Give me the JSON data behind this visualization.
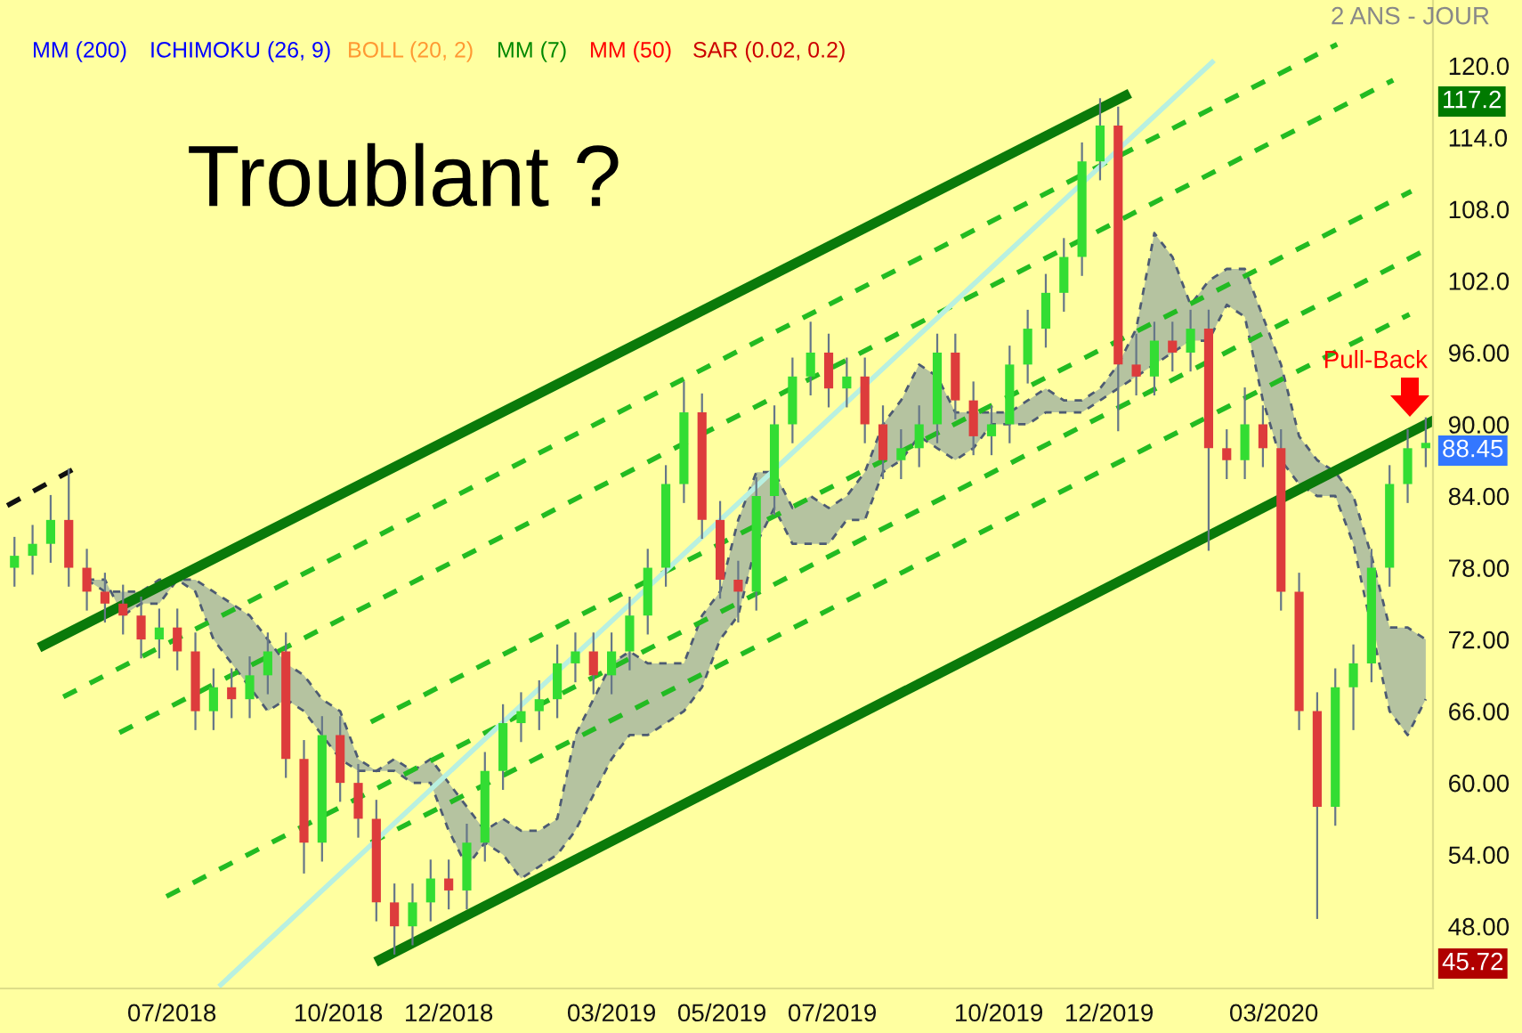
{
  "chart_data": {
    "type": "candlestick",
    "x": [
      "2018-04-05",
      "2018-04-15",
      "2018-04-25",
      "2018-05-05",
      "2018-05-15",
      "2018-05-25",
      "2018-06-04",
      "2018-06-14",
      "2018-06-24",
      "2018-07-04",
      "2018-07-14",
      "2018-07-24",
      "2018-08-03",
      "2018-08-13",
      "2018-08-23",
      "2018-09-02",
      "2018-09-12",
      "2018-09-22",
      "2018-10-02",
      "2018-10-12",
      "2018-10-22",
      "2018-11-01",
      "2018-11-11",
      "2018-11-21",
      "2018-12-01",
      "2018-12-11",
      "2018-12-21",
      "2018-12-31",
      "2019-01-10",
      "2019-01-20",
      "2019-01-30",
      "2019-02-09",
      "2019-02-19",
      "2019-03-01",
      "2019-03-11",
      "2019-03-21",
      "2019-03-31",
      "2019-04-10",
      "2019-04-20",
      "2019-04-30",
      "2019-05-10",
      "2019-05-20",
      "2019-05-30",
      "2019-06-09",
      "2019-06-19",
      "2019-06-29",
      "2019-07-09",
      "2019-07-19",
      "2019-07-29",
      "2019-08-08",
      "2019-08-18",
      "2019-08-28",
      "2019-09-07",
      "2019-09-17",
      "2019-09-27",
      "2019-10-07",
      "2019-10-17",
      "2019-10-27",
      "2019-11-06",
      "2019-11-16",
      "2019-11-26",
      "2019-12-06",
      "2019-12-16",
      "2019-12-26",
      "2020-01-05",
      "2020-01-15",
      "2020-01-25",
      "2020-02-04",
      "2020-02-14",
      "2020-02-24",
      "2020-03-05",
      "2020-03-15",
      "2020-03-25",
      "2020-04-04",
      "2020-04-14",
      "2020-04-24",
      "2020-05-04",
      "2020-05-14",
      "2020-05-24"
    ],
    "ohlc": [
      [
        78,
        80.5,
        76.5,
        79
      ],
      [
        79,
        81.5,
        77.5,
        80
      ],
      [
        80,
        84,
        78.5,
        82
      ],
      [
        82,
        86.2,
        76.5,
        78
      ],
      [
        78,
        79.5,
        74.5,
        76
      ],
      [
        76,
        77.5,
        73.5,
        75
      ],
      [
        75,
        76.5,
        72.5,
        74
      ],
      [
        74,
        75.5,
        70.5,
        72
      ],
      [
        72,
        74.5,
        70.5,
        73
      ],
      [
        73,
        74.5,
        69.5,
        71
      ],
      [
        71,
        72.5,
        64.5,
        66
      ],
      [
        66,
        69.5,
        64.5,
        68
      ],
      [
        68,
        69.5,
        65.5,
        67
      ],
      [
        67,
        70.5,
        65.5,
        69
      ],
      [
        69,
        72.5,
        67.5,
        71
      ],
      [
        71,
        72.5,
        60.5,
        62
      ],
      [
        62,
        63.5,
        52.5,
        55
      ],
      [
        55,
        65.5,
        53.5,
        64
      ],
      [
        64,
        65.5,
        58.5,
        60
      ],
      [
        60,
        61.5,
        55.5,
        57
      ],
      [
        57,
        58.5,
        48.5,
        50
      ],
      [
        50,
        51.5,
        45.72,
        48
      ],
      [
        48,
        51.5,
        46.5,
        50
      ],
      [
        50,
        53.5,
        48.5,
        52
      ],
      [
        52,
        53.5,
        49.5,
        51
      ],
      [
        51,
        56.5,
        49.5,
        55
      ],
      [
        55,
        62.5,
        53.5,
        61
      ],
      [
        61,
        66.5,
        59.5,
        65
      ],
      [
        65,
        67.5,
        63.5,
        66
      ],
      [
        66,
        68.5,
        64.5,
        67
      ],
      [
        67,
        71.5,
        65.5,
        70
      ],
      [
        70,
        72.5,
        68.5,
        71
      ],
      [
        71,
        72.5,
        67.5,
        69
      ],
      [
        69,
        72.5,
        67.5,
        71
      ],
      [
        71,
        75.5,
        69.5,
        74
      ],
      [
        74,
        79.5,
        72.5,
        78
      ],
      [
        78,
        86.5,
        76.5,
        85
      ],
      [
        85,
        93.5,
        83.5,
        91
      ],
      [
        91,
        92.5,
        80.5,
        82
      ],
      [
        82,
        83.5,
        75.5,
        77
      ],
      [
        77,
        78.5,
        73.5,
        76
      ],
      [
        76,
        85.5,
        74.5,
        84
      ],
      [
        84,
        91.5,
        82.5,
        90
      ],
      [
        90,
        95.5,
        88.5,
        94
      ],
      [
        94,
        98.5,
        92.5,
        96
      ],
      [
        96,
        97.5,
        91.5,
        93
      ],
      [
        93,
        95.5,
        91.5,
        94
      ],
      [
        94,
        95.5,
        88.5,
        90
      ],
      [
        90,
        91.5,
        85.5,
        87
      ],
      [
        87,
        89.5,
        85.5,
        88
      ],
      [
        88,
        91.5,
        86.5,
        90
      ],
      [
        90,
        97.5,
        88.5,
        96
      ],
      [
        96,
        97.5,
        90.5,
        92
      ],
      [
        92,
        93.5,
        87.5,
        89
      ],
      [
        89,
        91.5,
        87.5,
        90
      ],
      [
        90,
        96.5,
        88.5,
        95
      ],
      [
        95,
        99.5,
        93.5,
        98
      ],
      [
        98,
        102.5,
        96.5,
        101
      ],
      [
        101,
        105.5,
        99.5,
        104
      ],
      [
        104,
        113.5,
        102.5,
        112
      ],
      [
        112,
        117.2,
        110.5,
        115
      ],
      [
        115,
        116.5,
        89.5,
        95
      ],
      [
        95,
        97.5,
        92.5,
        94
      ],
      [
        94,
        98.5,
        92.5,
        97
      ],
      [
        97,
        98.5,
        94.5,
        96
      ],
      [
        96,
        99.5,
        94.5,
        98
      ],
      [
        98,
        99.5,
        79.5,
        88
      ],
      [
        88,
        89.5,
        85.5,
        87
      ],
      [
        87,
        93,
        85.5,
        90
      ],
      [
        90,
        91.5,
        86.5,
        88
      ],
      [
        88,
        89.5,
        74.5,
        76
      ],
      [
        76,
        77.5,
        64.5,
        66
      ],
      [
        66,
        67.5,
        48.7,
        58
      ],
      [
        58,
        69.5,
        56.5,
        68
      ],
      [
        68,
        71.5,
        64.5,
        70
      ],
      [
        70,
        79.5,
        68.5,
        78
      ],
      [
        78,
        86.5,
        76.5,
        85
      ],
      [
        85,
        89.5,
        83.5,
        88
      ],
      [
        88,
        90.5,
        86.5,
        88.45
      ]
    ],
    "colors": [
      "#33dd33",
      "#33dd33",
      "#33dd33",
      "#dd3c3c",
      "#dd3c3c",
      "#dd3c3c",
      "#dd3c3c",
      "#dd3c3c",
      "#33dd33",
      "#dd3c3c",
      "#dd3c3c",
      "#33dd33",
      "#dd3c3c",
      "#33dd33",
      "#33dd33",
      "#dd3c3c",
      "#dd3c3c",
      "#33dd33",
      "#dd3c3c",
      "#dd3c3c",
      "#dd3c3c",
      "#dd3c3c",
      "#33dd33",
      "#33dd33",
      "#dd3c3c",
      "#33dd33",
      "#33dd33",
      "#33dd33",
      "#33dd33",
      "#33dd33",
      "#33dd33",
      "#33dd33",
      "#dd3c3c",
      "#33dd33",
      "#33dd33",
      "#33dd33",
      "#33dd33",
      "#33dd33",
      "#dd3c3c",
      "#dd3c3c",
      "#dd3c3c",
      "#33dd33",
      "#33dd33",
      "#33dd33",
      "#33dd33",
      "#dd3c3c",
      "#33dd33",
      "#dd3c3c",
      "#dd3c3c",
      "#33dd33",
      "#33dd33",
      "#33dd33",
      "#dd3c3c",
      "#dd3c3c",
      "#33dd33",
      "#33dd33",
      "#33dd33",
      "#33dd33",
      "#33dd33",
      "#33dd33",
      "#33dd33",
      "#dd3c3c",
      "#dd3c3c",
      "#33dd33",
      "#dd3c3c",
      "#33dd33",
      "#dd3c3c",
      "#dd3c3c",
      "#33dd33",
      "#dd3c3c",
      "#dd3c3c",
      "#dd3c3c",
      "#dd3c3c",
      "#33dd33",
      "#33dd33",
      "#33dd33",
      "#33dd33",
      "#33dd33",
      "#33dd33"
    ],
    "series": [
      {
        "type": "line",
        "color": "#4d5b73",
        "line_style": "dashed",
        "values": [
          null,
          null,
          null,
          null,
          77,
          76,
          76,
          76,
          77,
          77,
          77,
          76,
          75,
          74,
          72,
          70,
          69,
          67,
          66,
          62,
          61,
          62,
          61,
          62,
          60,
          58,
          56,
          57,
          56,
          56,
          57,
          64,
          67,
          70,
          71,
          70,
          70,
          70,
          74,
          76,
          82,
          86,
          86,
          83,
          84,
          83,
          84,
          86,
          90,
          92,
          95,
          94,
          91,
          91,
          91,
          91,
          92,
          93,
          92,
          92,
          93,
          95,
          98,
          106,
          104,
          100,
          102,
          103,
          103,
          99,
          95,
          89,
          87,
          86,
          84,
          79,
          73,
          73,
          72
        ],
        "lower": [
          null,
          null,
          null,
          null,
          77,
          77,
          74,
          75,
          75,
          77,
          76,
          72,
          70,
          68,
          66,
          67,
          66,
          64,
          62,
          61,
          61,
          61,
          60,
          60,
          56,
          53,
          55,
          54,
          52,
          53,
          54,
          56,
          59,
          62,
          64,
          64,
          65,
          66,
          68,
          72,
          74,
          80,
          83,
          80,
          80,
          80,
          82,
          82,
          86,
          87,
          89,
          88,
          87,
          88,
          90,
          90,
          90,
          91,
          91,
          91,
          92,
          93,
          94,
          95,
          96,
          97,
          97,
          100,
          99,
          92,
          87,
          85,
          84,
          84,
          80,
          74,
          66,
          64,
          67
        ],
        "upper": [
          null,
          null,
          null,
          null,
          77,
          76,
          76,
          76,
          77,
          77,
          77,
          76,
          75,
          74,
          72,
          70,
          69,
          67,
          66,
          62,
          61,
          62,
          61,
          62,
          60,
          58,
          56,
          57,
          56,
          56,
          57,
          64,
          67,
          70,
          71,
          70,
          70,
          70,
          74,
          76,
          82,
          86,
          86,
          83,
          84,
          83,
          84,
          86,
          90,
          92,
          95,
          94,
          91,
          91,
          91,
          91,
          92,
          93,
          92,
          92,
          93,
          95,
          98,
          106,
          104,
          100,
          102,
          103,
          103,
          99,
          95,
          89,
          87,
          86,
          84,
          79,
          73,
          73,
          72
        ]
      },
      {
        "type": "line",
        "color": "#4d5b73",
        "line_style": "dashed",
        "values": [
          null,
          null,
          null,
          null,
          77,
          77,
          74,
          75,
          75,
          77,
          76,
          72,
          70,
          68,
          66,
          67,
          66,
          64,
          62,
          61,
          61,
          61,
          60,
          60,
          56,
          53,
          55,
          54,
          52,
          53,
          54,
          56,
          59,
          62,
          64,
          64,
          65,
          66,
          68,
          72,
          74,
          80,
          83,
          80,
          80,
          80,
          82,
          82,
          86,
          87,
          89,
          88,
          87,
          88,
          90,
          90,
          90,
          91,
          91,
          91,
          92,
          93,
          94,
          95,
          96,
          97,
          97,
          100,
          99,
          92,
          87,
          85,
          84,
          84,
          80,
          null,
          66,
          64,
          67
        ]
      },
      {
        "type": "line",
        "color": "#0a7a0a",
        "x": [
          "2018-04-21",
          "2019-12-10"
        ],
        "values": [
          71.5,
          117.5
        ]
      },
      {
        "type": "line",
        "color": "#0a7a0a",
        "x": [
          "2018-10-24",
          "2020-05-28"
        ],
        "values": [
          45.2,
          90.3
        ]
      },
      {
        "type": "line",
        "color": "#22bb22",
        "line_style": "dashed",
        "x": [
          "2018-05-02",
          "2020-04-05"
        ],
        "values": [
          67.2,
          121.8
        ]
      },
      {
        "type": "line",
        "color": "#22bb22",
        "line_style": "dashed",
        "x": [
          "2018-06-02",
          "2020-05-06"
        ],
        "values": [
          64.2,
          118.8
        ]
      },
      {
        "type": "line",
        "color": "#22bb22",
        "line_style": "dashed",
        "x": [
          "2018-06-28",
          "2020-05-28"
        ],
        "values": [
          50.5,
          104.9
        ]
      },
      {
        "type": "line",
        "color": "#22bb22",
        "line_style": "dashed",
        "x": [
          "2018-10-19",
          "2020-05-16"
        ],
        "values": [
          65.1,
          109.5
        ]
      },
      {
        "type": "line",
        "color": "#22bb22",
        "line_style": "dashed",
        "x": [
          "2018-10-19",
          "2020-05-15"
        ],
        "values": [
          55.0,
          99.2
        ]
      },
      {
        "type": "line",
        "color": "#b8f0e0",
        "x": [
          "2018-07-28",
          "2020-01-27"
        ],
        "values": [
          43.1,
          120.3
        ]
      },
      {
        "type": "line",
        "color": "#111111",
        "line_style": "dashed",
        "x": [
          "2018-04-01",
          "2018-05-07"
        ],
        "values": [
          83.2,
          86.2
        ]
      }
    ],
    "xlim": [
      "2018-03-28",
      "2020-05-28"
    ],
    "xticks": [
      {
        "value": "2018-07-01",
        "label": "07/2018"
      },
      {
        "value": "2018-10-01",
        "label": "10/2018"
      },
      {
        "value": "2018-12-01",
        "label": "12/2018"
      },
      {
        "value": "2019-03-01",
        "label": "03/2019"
      },
      {
        "value": "2019-05-01",
        "label": "05/2019"
      },
      {
        "value": "2019-07-01",
        "label": "07/2019"
      },
      {
        "value": "2019-10-01",
        "label": "10/2019"
      },
      {
        "value": "2019-12-01",
        "label": "12/2019"
      },
      {
        "value": "2020-03-01",
        "label": "03/2020"
      }
    ],
    "ylim": [
      42.8,
      125.5
    ],
    "yticks": [
      {
        "value": 120,
        "label": "120.0"
      },
      {
        "value": 114,
        "label": "114.0"
      },
      {
        "value": 108,
        "label": "108.0"
      },
      {
        "value": 102,
        "label": "102.0"
      },
      {
        "value": 96,
        "label": "96.00"
      },
      {
        "value": 90,
        "label": "90.00"
      },
      {
        "value": 84,
        "label": "84.00"
      },
      {
        "value": 78,
        "label": "78.00"
      },
      {
        "value": 72,
        "label": "72.00"
      },
      {
        "value": 66,
        "label": "66.00"
      },
      {
        "value": 60,
        "label": "60.00"
      },
      {
        "value": 54,
        "label": "54.00"
      },
      {
        "value": 48,
        "label": "48.00"
      }
    ],
    "grid": false,
    "legend": false,
    "annotations": [
      "2 ANS - JOUR",
      "MM (200)",
      "ICHIMOKU (26, 9)",
      "BOLL (20, 2)",
      "MM (7)",
      "MM (50)",
      "SAR (0.02, 0.2)",
      "Troublant ?",
      "Pull-Back",
      "117.2",
      "88.45",
      "45.72"
    ]
  }
}
